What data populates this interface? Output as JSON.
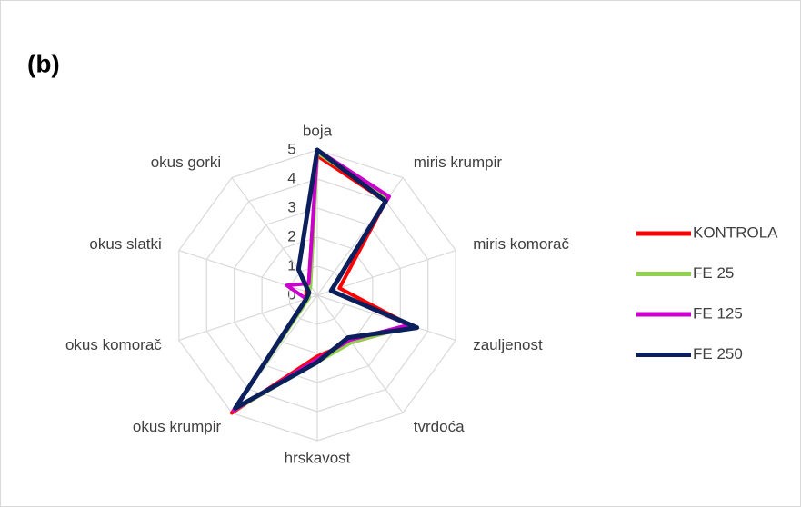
{
  "chart_data": {
    "type": "radar",
    "title": "(b)",
    "categories": [
      "boja",
      "miris krumpir",
      "miris komorač",
      "zauljenost",
      "tvrdoća",
      "hrskavost",
      "okus krumpir",
      "okus komorač",
      "okus slatki",
      "okus gorki"
    ],
    "series": [
      {
        "name": "KONTROLA",
        "color": "#ff0000",
        "values": [
          4.8,
          4.0,
          0.8,
          3.4,
          2.0,
          2.1,
          5.0,
          0.4,
          0.4,
          0.5
        ]
      },
      {
        "name": "FE 25",
        "color": "#92d050",
        "values": [
          4.9,
          4.1,
          0.5,
          3.4,
          2.0,
          2.3,
          4.9,
          0.3,
          0.3,
          0.4
        ]
      },
      {
        "name": "FE 125",
        "color": "#cc00cc",
        "values": [
          5.0,
          4.2,
          0.5,
          3.3,
          1.9,
          2.2,
          4.9,
          0.4,
          1.1,
          0.5
        ]
      },
      {
        "name": "FE 250",
        "color": "#0a1f5c",
        "values": [
          5.0,
          4.0,
          0.5,
          3.6,
          1.8,
          2.3,
          4.8,
          0.4,
          0.3,
          1.1
        ]
      }
    ],
    "ylim": [
      0,
      5
    ],
    "yticks": [
      0,
      1,
      2,
      3,
      4,
      5
    ],
    "grid": true,
    "legend": "right"
  }
}
